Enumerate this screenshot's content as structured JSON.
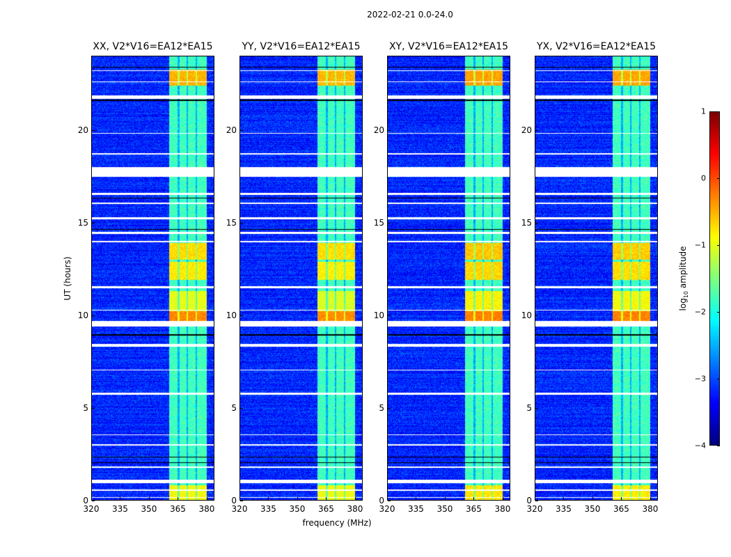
{
  "chart_data": {
    "type": "heatmap",
    "title": "2022-02-21 0.0-24.0",
    "xlabel": "frequency (MHz)",
    "ylabel": "UT (hours)",
    "xlim": [
      320,
      384
    ],
    "ylim": [
      0,
      24
    ],
    "xticks": [
      "320",
      "335",
      "350",
      "365",
      "380"
    ],
    "xtick_values": [
      320,
      335,
      350,
      365,
      380
    ],
    "yticks": [
      "0",
      "5",
      "10",
      "15",
      "20"
    ],
    "ytick_values": [
      0,
      5,
      10,
      15,
      20
    ],
    "panels": [
      {
        "title": "XX, V2*V16=EA12*EA15",
        "bright_scale": 1.0
      },
      {
        "title": "YY, V2*V16=EA12*EA15",
        "bright_scale": 1.05
      },
      {
        "title": "XY, V2*V16=EA12*EA15",
        "bright_scale": 0.85
      },
      {
        "title": "YX, V2*V16=EA12*EA15",
        "bright_scale": 0.9
      }
    ],
    "background_log10_amplitude": -3.2,
    "rfi_band_mhz": [
      360.5,
      380.5
    ],
    "rfi_band_log10_amplitude": -1.8,
    "subband_gaps_mhz": [
      365.5,
      370.2,
      374.9
    ],
    "bright_intervals_hours": [
      [
        0.0,
        0.8,
        -0.9
      ],
      [
        9.7,
        10.2,
        -0.3
      ],
      [
        10.2,
        11.3,
        -1.0
      ],
      [
        11.9,
        12.9,
        -0.8
      ],
      [
        13.0,
        13.9,
        -0.7
      ],
      [
        22.4,
        23.3,
        -0.5
      ]
    ],
    "flagged_intervals_hours": [
      [
        0.1,
        0.15
      ],
      [
        0.5,
        0.55
      ],
      [
        0.9,
        1.1
      ],
      [
        1.75,
        1.8
      ],
      [
        2.95,
        3.0
      ],
      [
        3.5,
        3.55
      ],
      [
        5.7,
        5.8
      ],
      [
        7.0,
        7.05
      ],
      [
        8.3,
        8.45
      ],
      [
        9.4,
        9.7
      ],
      [
        10.25,
        10.3
      ],
      [
        11.45,
        11.55
      ],
      [
        13.95,
        14.02
      ],
      [
        14.4,
        14.5
      ],
      [
        15.2,
        15.3
      ],
      [
        16.0,
        16.1
      ],
      [
        16.5,
        16.6
      ],
      [
        17.5,
        18.0
      ],
      [
        18.7,
        18.78
      ],
      [
        19.8,
        19.85
      ],
      [
        21.7,
        21.9
      ],
      [
        22.6,
        22.65
      ],
      [
        23.2,
        23.25
      ]
    ],
    "dark_intervals_hours": [
      [
        2.0,
        2.05
      ],
      [
        2.3,
        2.35
      ],
      [
        8.9,
        8.95
      ],
      [
        14.6,
        14.65
      ],
      [
        16.3,
        16.35
      ],
      [
        21.6,
        21.65
      ],
      [
        23.4,
        23.45
      ]
    ],
    "colorbar": {
      "label": "log10 amplitude",
      "label_base": "log",
      "label_sub": "10",
      "label_rest": " amplitude",
      "range": [
        -4,
        1
      ],
      "ticks": [
        "1",
        "0",
        "−1",
        "−2",
        "−3",
        "−4"
      ],
      "tick_values": [
        1,
        0,
        -1,
        -2,
        -3,
        -4
      ],
      "colormap": "jet"
    }
  }
}
